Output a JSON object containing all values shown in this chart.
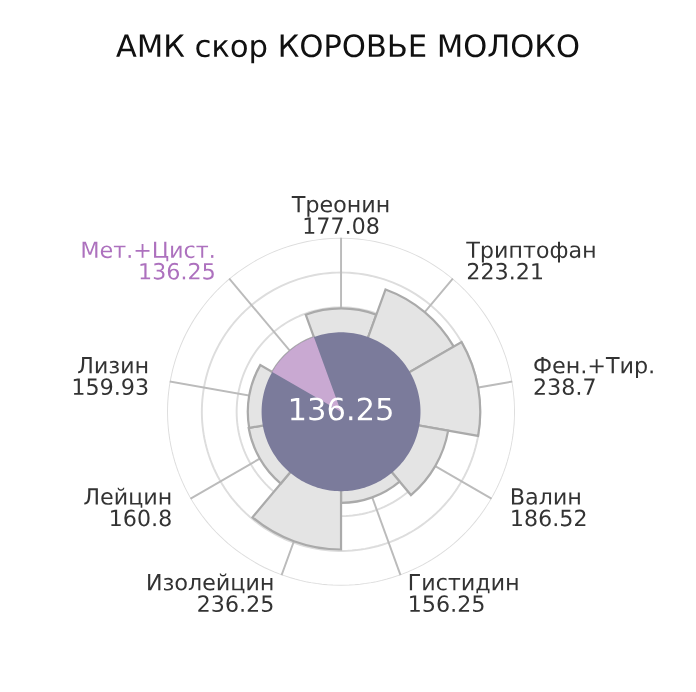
{
  "chart_data": {
    "type": "other",
    "title": "АМК скор КОРОВЬЕ МОЛОКО",
    "categories": [
      "Треонин",
      "Триптофан",
      "Фен.+Тир.",
      "Валин",
      "Гистидин",
      "Изолейцин",
      "Лейцин",
      "Лизин",
      "Мет.+Цист."
    ],
    "values": [
      177.08,
      223.21,
      238.7,
      186.52,
      156.25,
      236.25,
      160.8,
      159.93,
      136.25
    ],
    "colors": [
      "#e4e4e4",
      "#e4e4e4",
      "#e4e4e4",
      "#e4e4e4",
      "#e4e4e4",
      "#e4e4e4",
      "#e4e4e4",
      "#e4e4e4",
      "#c9a9d2"
    ],
    "data_labels": true,
    "annotations": [
      "136.25"
    ]
  }
}
